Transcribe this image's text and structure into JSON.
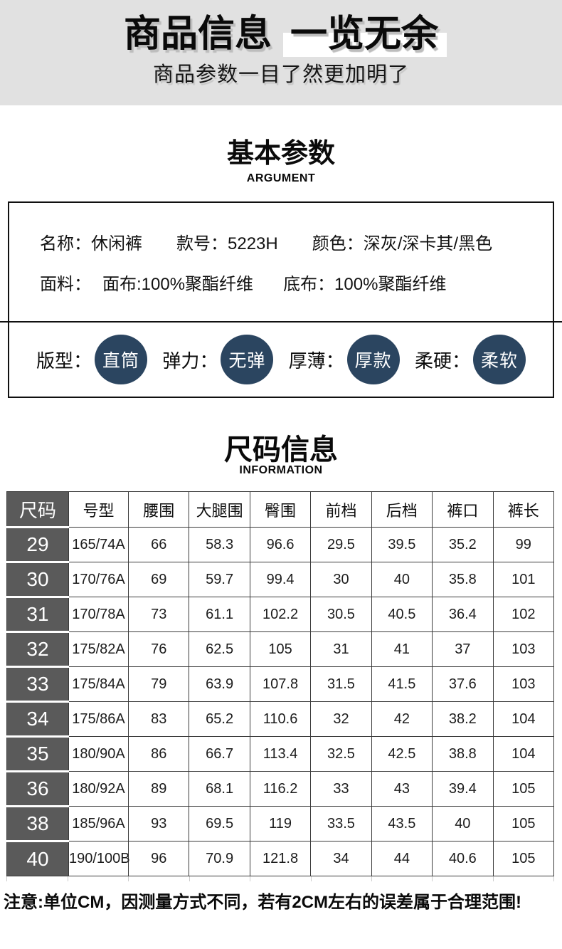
{
  "hero": {
    "title_main": "商品信息",
    "title_highlight": "一览无余",
    "subtitle": "商品参数一目了然更加明了"
  },
  "basic": {
    "title": "基本参数",
    "subtitle_en": "ARGUMENT",
    "row1": [
      {
        "label": "名称：",
        "value": "休闲裤"
      },
      {
        "label": "款号：",
        "value": "5223H"
      },
      {
        "label": "颜色：",
        "value": "深灰/深卡其/黑色"
      }
    ],
    "row2": {
      "label": "面料：",
      "items": [
        "面布:100%聚酯纤维",
        "底布：100%聚酯纤维"
      ]
    },
    "attributes": [
      {
        "label": "版型：",
        "value": "直筒"
      },
      {
        "label": "弹力：",
        "value": "无弹"
      },
      {
        "label": "厚薄：",
        "value": "厚款"
      },
      {
        "label": "柔硬：",
        "value": "柔软"
      }
    ]
  },
  "sizes": {
    "title": "尺码信息",
    "subtitle_en": "INFORMATION",
    "table": {
      "headers": [
        "尺码",
        "号型",
        "腰围",
        "大腿围",
        "臀围",
        "前档",
        "后档",
        "裤口",
        "裤长"
      ],
      "rows": [
        [
          "29",
          "165/74A",
          "66",
          "58.3",
          "96.6",
          "29.5",
          "39.5",
          "35.2",
          "99"
        ],
        [
          "30",
          "170/76A",
          "69",
          "59.7",
          "99.4",
          "30",
          "40",
          "35.8",
          "101"
        ],
        [
          "31",
          "170/78A",
          "73",
          "61.1",
          "102.2",
          "30.5",
          "40.5",
          "36.4",
          "102"
        ],
        [
          "32",
          "175/82A",
          "76",
          "62.5",
          "105",
          "31",
          "41",
          "37",
          "103"
        ],
        [
          "33",
          "175/84A",
          "79",
          "63.9",
          "107.8",
          "31.5",
          "41.5",
          "37.6",
          "103"
        ],
        [
          "34",
          "175/86A",
          "83",
          "65.2",
          "110.6",
          "32",
          "42",
          "38.2",
          "104"
        ],
        [
          "35",
          "180/90A",
          "86",
          "66.7",
          "113.4",
          "32.5",
          "42.5",
          "38.8",
          "104"
        ],
        [
          "36",
          "180/92A",
          "89",
          "68.1",
          "116.2",
          "33",
          "43",
          "39.4",
          "105"
        ],
        [
          "38",
          "185/96A",
          "93",
          "69.5",
          "119",
          "33.5",
          "43.5",
          "40",
          "105"
        ],
        [
          "40",
          "190/100B",
          "96",
          "70.9",
          "121.8",
          "34",
          "44",
          "40.6",
          "105"
        ]
      ]
    },
    "note": "注意:单位CM，因测量方式不同，若有2CM左右的误差属于合理范围!"
  },
  "colors": {
    "banner_bg": "#e1e1e1",
    "highlight_bg": "#ffffff",
    "attribute_circle": "#2b4560",
    "size_column_bg": "#5a5a5a",
    "table_border": "#3b3b3b"
  }
}
